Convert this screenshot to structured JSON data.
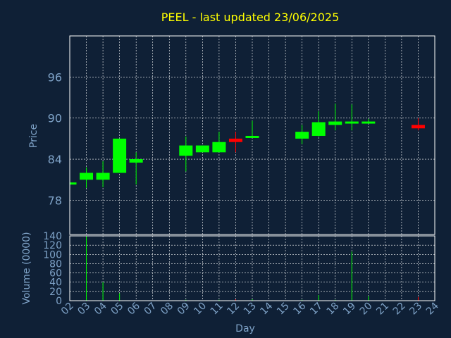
{
  "colors": {
    "background": "#0f2036",
    "title": "#ffff00",
    "label": "#7fa3c8",
    "frame": "#ffffff",
    "grid": "#ffffff",
    "up": "#00ff00",
    "down": "#ff0000"
  },
  "chart_data": [
    {
      "type": "candlestick",
      "title": "PEEL - last updated 23/06/2025",
      "ylabel": "Price",
      "xlabel": "",
      "ylim": [
        73,
        102
      ],
      "yticks": [
        78,
        84,
        90,
        96
      ],
      "grid": true,
      "candles": [
        {
          "day": 2.0,
          "open": 80.4,
          "close": 80.6,
          "high": 80.6,
          "low": 80.4
        },
        {
          "day": 3.0,
          "open": 81.0,
          "close": 82.0,
          "high": 82.8,
          "low": 79.8
        },
        {
          "day": 4.0,
          "open": 81.0,
          "close": 82.0,
          "high": 83.7,
          "low": 79.9
        },
        {
          "day": 5.0,
          "open": 82.0,
          "close": 87.0,
          "high": 87.0,
          "low": 82.0
        },
        {
          "day": 6.0,
          "open": 83.5,
          "close": 84.0,
          "high": 85.0,
          "low": 80.3
        },
        {
          "day": 9.0,
          "open": 84.5,
          "close": 86.0,
          "high": 87.3,
          "low": 82.2
        },
        {
          "day": 10.0,
          "open": 85.0,
          "close": 86.0,
          "high": 86.0,
          "low": 85.0
        },
        {
          "day": 11.0,
          "open": 85.0,
          "close": 86.5,
          "high": 88.0,
          "low": 85.0
        },
        {
          "day": 12.0,
          "open": 87.0,
          "close": 86.5,
          "high": 88.0,
          "low": 85.0
        },
        {
          "day": 13.0,
          "open": 87.2,
          "close": 87.4,
          "high": 89.6,
          "low": 87.2
        },
        {
          "day": 16.0,
          "open": 87.0,
          "close": 88.0,
          "high": 89.0,
          "low": 86.2
        },
        {
          "day": 17.0,
          "open": 87.4,
          "close": 89.4,
          "high": 91.0,
          "low": 87.3
        },
        {
          "day": 18.0,
          "open": 89.0,
          "close": 89.5,
          "high": 92.1,
          "low": 88.2
        },
        {
          "day": 19.0,
          "open": 89.4,
          "close": 89.5,
          "high": 92.0,
          "low": 88.2
        },
        {
          "day": 20.0,
          "open": 89.3,
          "close": 89.5,
          "high": 89.9,
          "low": 89.3
        },
        {
          "day": 23.0,
          "open": 89.0,
          "close": 88.5,
          "high": 90.0,
          "low": 88.2
        }
      ]
    },
    {
      "type": "bar",
      "title": "",
      "ylabel": "Volume (0000)",
      "xlabel": "Day",
      "ylim": [
        0,
        140
      ],
      "yticks": [
        0,
        20,
        40,
        60,
        80,
        100,
        120,
        140
      ],
      "xlim": [
        2,
        24
      ],
      "xticks": [
        "02",
        "03",
        "04",
        "05",
        "06",
        "07",
        "08",
        "09",
        "10",
        "11",
        "12",
        "13",
        "14",
        "15",
        "16",
        "17",
        "18",
        "19",
        "20",
        "21",
        "22",
        "23",
        "24"
      ],
      "grid": true,
      "bars": [
        {
          "day": 3.0,
          "value": 140,
          "dir": "up"
        },
        {
          "day": 4.0,
          "value": 40,
          "dir": "up"
        },
        {
          "day": 5.0,
          "value": 16,
          "dir": "up"
        },
        {
          "day": 9.0,
          "value": 2,
          "dir": "up"
        },
        {
          "day": 11.0,
          "value": 2,
          "dir": "up"
        },
        {
          "day": 12.0,
          "value": 3,
          "dir": "down"
        },
        {
          "day": 13.0,
          "value": 3,
          "dir": "up"
        },
        {
          "day": 16.0,
          "value": 2,
          "dir": "up"
        },
        {
          "day": 17.0,
          "value": 12,
          "dir": "up"
        },
        {
          "day": 18.0,
          "value": 2,
          "dir": "up"
        },
        {
          "day": 19.0,
          "value": 106,
          "dir": "up"
        },
        {
          "day": 20.0,
          "value": 10,
          "dir": "up"
        },
        {
          "day": 23.0,
          "value": 8,
          "dir": "down"
        }
      ]
    }
  ]
}
